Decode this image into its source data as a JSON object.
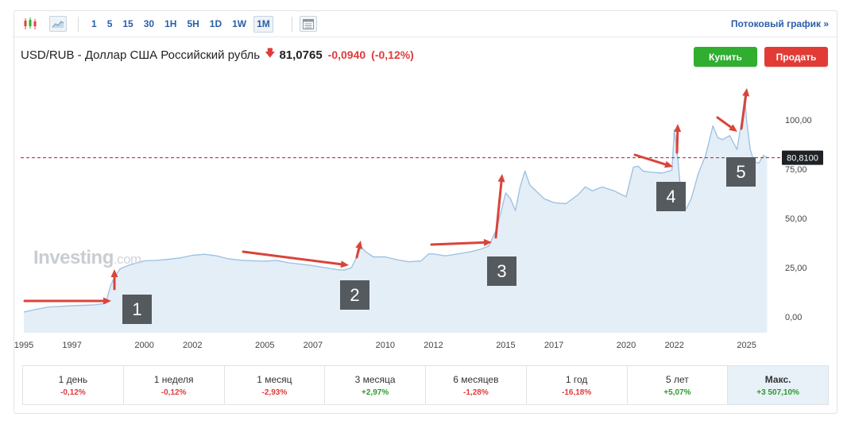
{
  "toolbar": {
    "periods": [
      "1",
      "5",
      "15",
      "30",
      "1H",
      "5H",
      "1D",
      "1W",
      "1M"
    ],
    "active_period": "1M",
    "stream_link": "Потоковый график »"
  },
  "header": {
    "pair_title": "USD/RUB - Доллар США Российский рубль",
    "price": "81,0765",
    "change": "-0,0940",
    "change_pct": "(-0,12%)"
  },
  "buttons": {
    "buy": "Купить",
    "sell": "Продать"
  },
  "watermark": {
    "brand": "Investing",
    "suffix": ".com"
  },
  "annotations": [
    "1",
    "2",
    "3",
    "4",
    "5"
  ],
  "performance": [
    {
      "label": "1 день",
      "value": "-0,12%",
      "sign": "neg"
    },
    {
      "label": "1 неделя",
      "value": "-0,12%",
      "sign": "neg"
    },
    {
      "label": "1 месяц",
      "value": "-2,93%",
      "sign": "neg"
    },
    {
      "label": "3 месяца",
      "value": "+2,97%",
      "sign": "pos"
    },
    {
      "label": "6 месяцев",
      "value": "-1,28%",
      "sign": "neg"
    },
    {
      "label": "1 год",
      "value": "-16,18%",
      "sign": "neg"
    },
    {
      "label": "5 лет",
      "value": "+5,07%",
      "sign": "pos"
    },
    {
      "label": "Макс.",
      "value": "+3 507,10%",
      "sign": "pos"
    }
  ],
  "colors": {
    "line": "#9ec3e3",
    "fill": "#e4eef7",
    "arrow": "#d9443a",
    "price_line": "#b22222",
    "price_tag": "#1e2125"
  },
  "chart_data": {
    "type": "area",
    "title": "",
    "xlabel": "",
    "ylabel": "",
    "x_ticks": [
      "1995",
      "1997",
      "2000",
      "2002",
      "2005",
      "2007",
      "2010",
      "2012",
      "2015",
      "2017",
      "2020",
      "2022",
      "2025"
    ],
    "y_ticks": [
      "0,00",
      "25,00",
      "50,00",
      "75,00",
      "100,00"
    ],
    "ylim": [
      -8,
      125
    ],
    "xlim": [
      1995.0,
      2026.1
    ],
    "current_price_label": "80,8100",
    "current_price": 80.81,
    "grid": false,
    "series": [
      {
        "x": [
          1995.0,
          1995.5,
          1996.0,
          1996.5,
          1997.0,
          1997.5,
          1998.0,
          1998.4,
          1998.6,
          1998.8,
          1999.0,
          1999.3,
          1999.7,
          2000.0,
          2000.5,
          2001.0,
          2001.5,
          2002.0,
          2002.5,
          2003.0,
          2003.5,
          2004.0,
          2004.5,
          2005.0,
          2005.5,
          2006.0,
          2006.5,
          2007.0,
          2007.5,
          2008.0,
          2008.3,
          2008.6,
          2008.8,
          2009.0,
          2009.2,
          2009.5,
          2010.0,
          2010.5,
          2011.0,
          2011.5,
          2011.8,
          2012.0,
          2012.5,
          2013.0,
          2013.5,
          2014.0,
          2014.3,
          2014.6,
          2014.8,
          2015.0,
          2015.2,
          2015.4,
          2015.6,
          2015.8,
          2016.0,
          2016.3,
          2016.6,
          2017.0,
          2017.5,
          2018.0,
          2018.3,
          2018.6,
          2019.0,
          2019.5,
          2020.0,
          2020.3,
          2020.5,
          2020.7,
          2021.0,
          2021.5,
          2021.9,
          2022.0,
          2022.15,
          2022.3,
          2022.5,
          2022.7,
          2023.0,
          2023.3,
          2023.6,
          2023.8,
          2024.0,
          2024.3,
          2024.6,
          2024.8,
          2024.92,
          2025.0,
          2025.15,
          2025.3,
          2025.5,
          2025.7,
          2025.85
        ],
        "y": [
          2.5,
          3.8,
          5.0,
          5.4,
          5.7,
          5.9,
          6.2,
          7.0,
          16.0,
          21.0,
          24.5,
          26.0,
          27.5,
          28.5,
          28.7,
          29.3,
          30.0,
          31.3,
          31.8,
          31.0,
          29.5,
          28.8,
          28.5,
          28.3,
          28.7,
          27.5,
          26.8,
          26.0,
          25.0,
          24.0,
          23.8,
          25.0,
          30.0,
          35.5,
          33.0,
          30.5,
          30.5,
          29.0,
          28.0,
          28.5,
          32.0,
          32.0,
          31.0,
          32.0,
          33.0,
          34.5,
          36.0,
          44.0,
          53.0,
          63.0,
          60.0,
          54.0,
          66.0,
          74.0,
          67.0,
          63.5,
          60.0,
          58.0,
          57.5,
          62.0,
          66.0,
          64.0,
          66.0,
          64.0,
          61.0,
          76.0,
          76.5,
          74.0,
          73.5,
          73.0,
          74.5,
          95.0,
          80.0,
          58.0,
          55.0,
          60.0,
          73.0,
          82.0,
          97.0,
          91.0,
          90.0,
          92.0,
          85.0,
          100.0,
          112.0,
          100.0,
          85.0,
          79.0,
          78.0,
          82.0,
          80.8
        ]
      }
    ]
  }
}
